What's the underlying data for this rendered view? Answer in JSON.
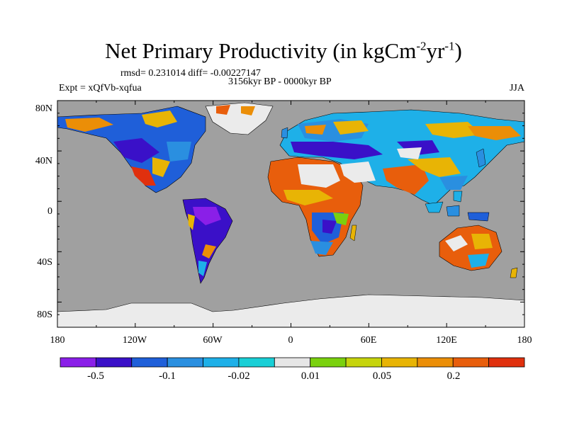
{
  "title": {
    "main": "Net Primary Productivity (in kgCm",
    "exp1": "-2",
    "mid": "yr",
    "exp2": "-1",
    "end": ")"
  },
  "stats": "rmsd= 0.231014 diff= -0.00227147",
  "period": "3156kyr BP - 0000kyr BP",
  "experiment": "Expt = xQfVb-xqfua",
  "season": "JJA",
  "x_ticks": [
    "180",
    "120W",
    "60W",
    "0",
    "60E",
    "120E",
    "180"
  ],
  "y_ticks": [
    "80N",
    "40N",
    "0",
    "40S",
    "80S"
  ],
  "colorbar": {
    "colors": [
      "#8a1fe8",
      "#3a10c8",
      "#1f5fd9",
      "#2a8fe0",
      "#1eb0e8",
      "#19cfd6",
      "#e6e6e6",
      "#7ad10e",
      "#c6d40c",
      "#e8b405",
      "#eb8e07",
      "#e85e0c",
      "#e0300e"
    ],
    "labels": [
      "-0.5",
      "-0.1",
      "-0.02",
      "0.01",
      "0.05",
      "0.2"
    ]
  },
  "colors": {
    "ocean": "#a0a0a0",
    "land_ice": "#ebebeb"
  }
}
